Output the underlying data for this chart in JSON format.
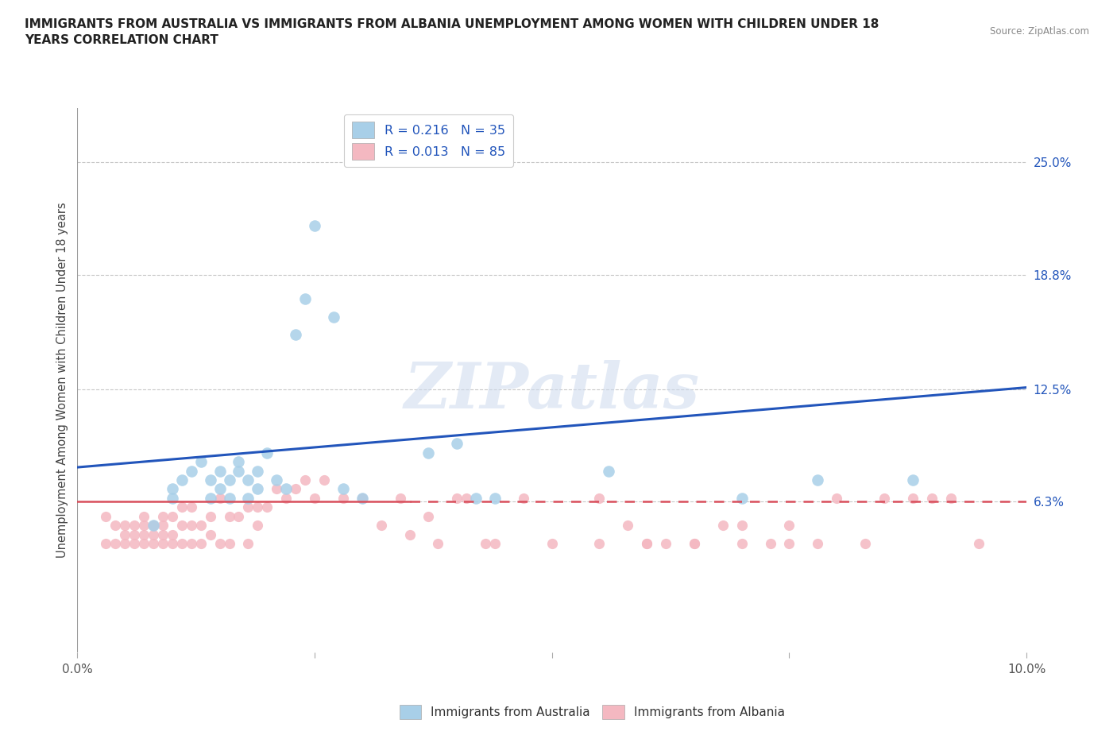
{
  "title": "IMMIGRANTS FROM AUSTRALIA VS IMMIGRANTS FROM ALBANIA UNEMPLOYMENT AMONG WOMEN WITH CHILDREN UNDER 18\nYEARS CORRELATION CHART",
  "source": "Source: ZipAtlas.com",
  "ylabel": "Unemployment Among Women with Children Under 18 years",
  "xlim": [
    0.0,
    0.1
  ],
  "ylim": [
    -0.02,
    0.28
  ],
  "yticks": [
    0.063,
    0.125,
    0.188,
    0.25
  ],
  "ytick_labels": [
    "6.3%",
    "12.5%",
    "18.8%",
    "25.0%"
  ],
  "xticks": [
    0.0,
    0.025,
    0.05,
    0.075,
    0.1
  ],
  "xtick_labels": [
    "0.0%",
    "",
    "",
    "",
    "10.0%"
  ],
  "hlines": [
    0.063,
    0.125,
    0.188,
    0.25
  ],
  "color_australia": "#a8cfe8",
  "color_albania": "#f4b8c1",
  "trendline_australia_color": "#2255bb",
  "trendline_albania_color": "#d94f5c",
  "background_color": "#ffffff",
  "watermark": "ZIPatlas",
  "australia_x": [
    0.008,
    0.01,
    0.01,
    0.011,
    0.012,
    0.013,
    0.014,
    0.014,
    0.015,
    0.015,
    0.016,
    0.016,
    0.017,
    0.017,
    0.018,
    0.018,
    0.019,
    0.019,
    0.02,
    0.021,
    0.022,
    0.023,
    0.024,
    0.025,
    0.027,
    0.028,
    0.03,
    0.037,
    0.04,
    0.042,
    0.044,
    0.056,
    0.07,
    0.078,
    0.088
  ],
  "australia_y": [
    0.05,
    0.065,
    0.07,
    0.075,
    0.08,
    0.085,
    0.065,
    0.075,
    0.08,
    0.07,
    0.075,
    0.065,
    0.08,
    0.085,
    0.065,
    0.075,
    0.07,
    0.08,
    0.09,
    0.075,
    0.07,
    0.155,
    0.175,
    0.215,
    0.165,
    0.07,
    0.065,
    0.09,
    0.095,
    0.065,
    0.065,
    0.08,
    0.065,
    0.075,
    0.075
  ],
  "albania_x": [
    0.003,
    0.003,
    0.004,
    0.004,
    0.005,
    0.005,
    0.005,
    0.006,
    0.006,
    0.006,
    0.007,
    0.007,
    0.007,
    0.007,
    0.008,
    0.008,
    0.008,
    0.009,
    0.009,
    0.009,
    0.009,
    0.01,
    0.01,
    0.01,
    0.011,
    0.011,
    0.011,
    0.012,
    0.012,
    0.012,
    0.013,
    0.013,
    0.014,
    0.014,
    0.015,
    0.015,
    0.016,
    0.016,
    0.017,
    0.018,
    0.018,
    0.019,
    0.019,
    0.02,
    0.021,
    0.022,
    0.023,
    0.024,
    0.025,
    0.026,
    0.028,
    0.03,
    0.032,
    0.034,
    0.035,
    0.037,
    0.038,
    0.04,
    0.041,
    0.043,
    0.044,
    0.047,
    0.05,
    0.055,
    0.058,
    0.06,
    0.062,
    0.065,
    0.068,
    0.07,
    0.073,
    0.075,
    0.078,
    0.08,
    0.083,
    0.085,
    0.088,
    0.09,
    0.092,
    0.095,
    0.055,
    0.06,
    0.065,
    0.07,
    0.075
  ],
  "albania_y": [
    0.055,
    0.04,
    0.05,
    0.04,
    0.045,
    0.05,
    0.04,
    0.045,
    0.05,
    0.04,
    0.045,
    0.05,
    0.04,
    0.055,
    0.04,
    0.045,
    0.05,
    0.04,
    0.045,
    0.05,
    0.055,
    0.04,
    0.045,
    0.055,
    0.04,
    0.05,
    0.06,
    0.04,
    0.05,
    0.06,
    0.04,
    0.05,
    0.045,
    0.055,
    0.04,
    0.065,
    0.04,
    0.055,
    0.055,
    0.04,
    0.06,
    0.05,
    0.06,
    0.06,
    0.07,
    0.065,
    0.07,
    0.075,
    0.065,
    0.075,
    0.065,
    0.065,
    0.05,
    0.065,
    0.045,
    0.055,
    0.04,
    0.065,
    0.065,
    0.04,
    0.04,
    0.065,
    0.04,
    0.04,
    0.05,
    0.04,
    0.04,
    0.04,
    0.05,
    0.05,
    0.04,
    0.05,
    0.04,
    0.065,
    0.04,
    0.065,
    0.065,
    0.065,
    0.065,
    0.04,
    0.065,
    0.04,
    0.04,
    0.04,
    0.04
  ]
}
